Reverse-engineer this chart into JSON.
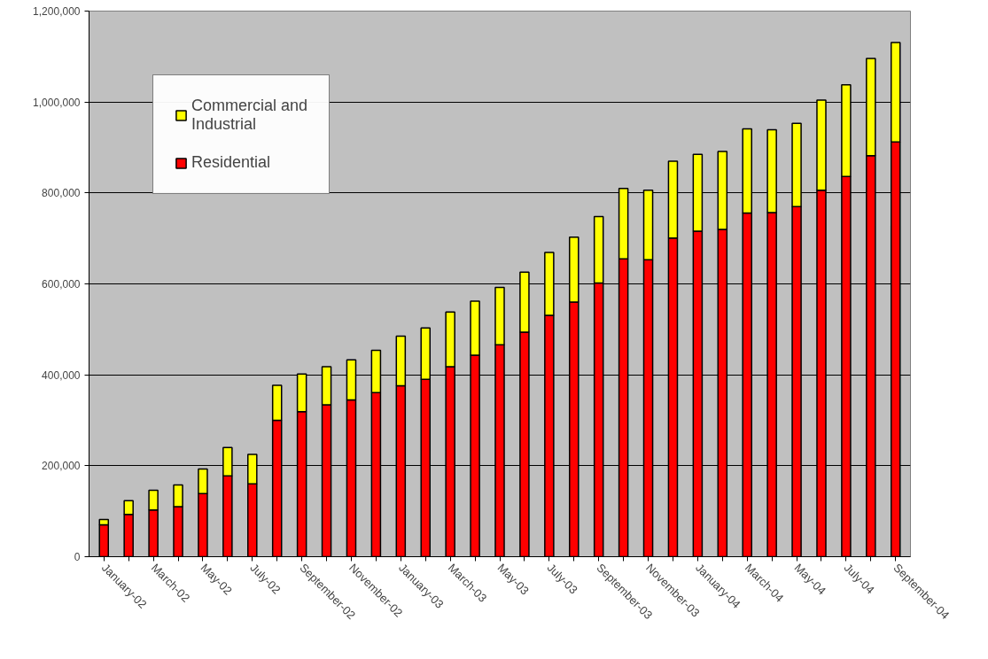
{
  "chart_data": {
    "type": "bar",
    "stacked": true,
    "categories": [
      "January-02",
      null,
      "March-02",
      null,
      "May-02",
      null,
      "July-02",
      null,
      "September-02",
      null,
      "November-02",
      null,
      "January-03",
      null,
      "March-03",
      null,
      "May-03",
      null,
      "July-03",
      null,
      "September-03",
      null,
      "November-03",
      null,
      "January-04",
      null,
      "March-04",
      null,
      "May-04",
      null,
      "July-04",
      null,
      "September-04"
    ],
    "series": [
      {
        "name": "Residential",
        "color": "#ff0000",
        "values": [
          70000,
          93000,
          103000,
          110000,
          139000,
          178000,
          160000,
          300000,
          319000,
          334000,
          345000,
          361000,
          376000,
          390000,
          418000,
          443000,
          466000,
          494000,
          531000,
          560000,
          602000,
          655000,
          653000,
          701000,
          716000,
          720000,
          756000,
          757000,
          770000,
          806000,
          836000,
          882000,
          912000
        ]
      },
      {
        "name": "Commercial and Industrial",
        "color": "#ffff00",
        "values": [
          12000,
          30000,
          43000,
          48000,
          54000,
          62000,
          65000,
          77000,
          83000,
          84000,
          88000,
          93000,
          109000,
          113000,
          120000,
          119000,
          126000,
          132000,
          138000,
          143000,
          146000,
          155000,
          153000,
          169000,
          169000,
          171000,
          185000,
          182000,
          183000,
          198000,
          202000,
          214000,
          219000
        ]
      }
    ],
    "ylim": [
      0,
      1200000
    ],
    "yticks": [
      0,
      {
        "value": 200000,
        "label": "200,000"
      },
      {
        "value": 400000,
        "label": "400,000"
      },
      {
        "value": 600000,
        "label": "600,000"
      },
      {
        "value": 800000,
        "label": "800,000"
      },
      {
        "value": 1000000,
        "label": "1,000,000"
      },
      {
        "value": 1200000,
        "label": "1,200,000"
      }
    ],
    "grid": "y",
    "legend": "top left"
  }
}
